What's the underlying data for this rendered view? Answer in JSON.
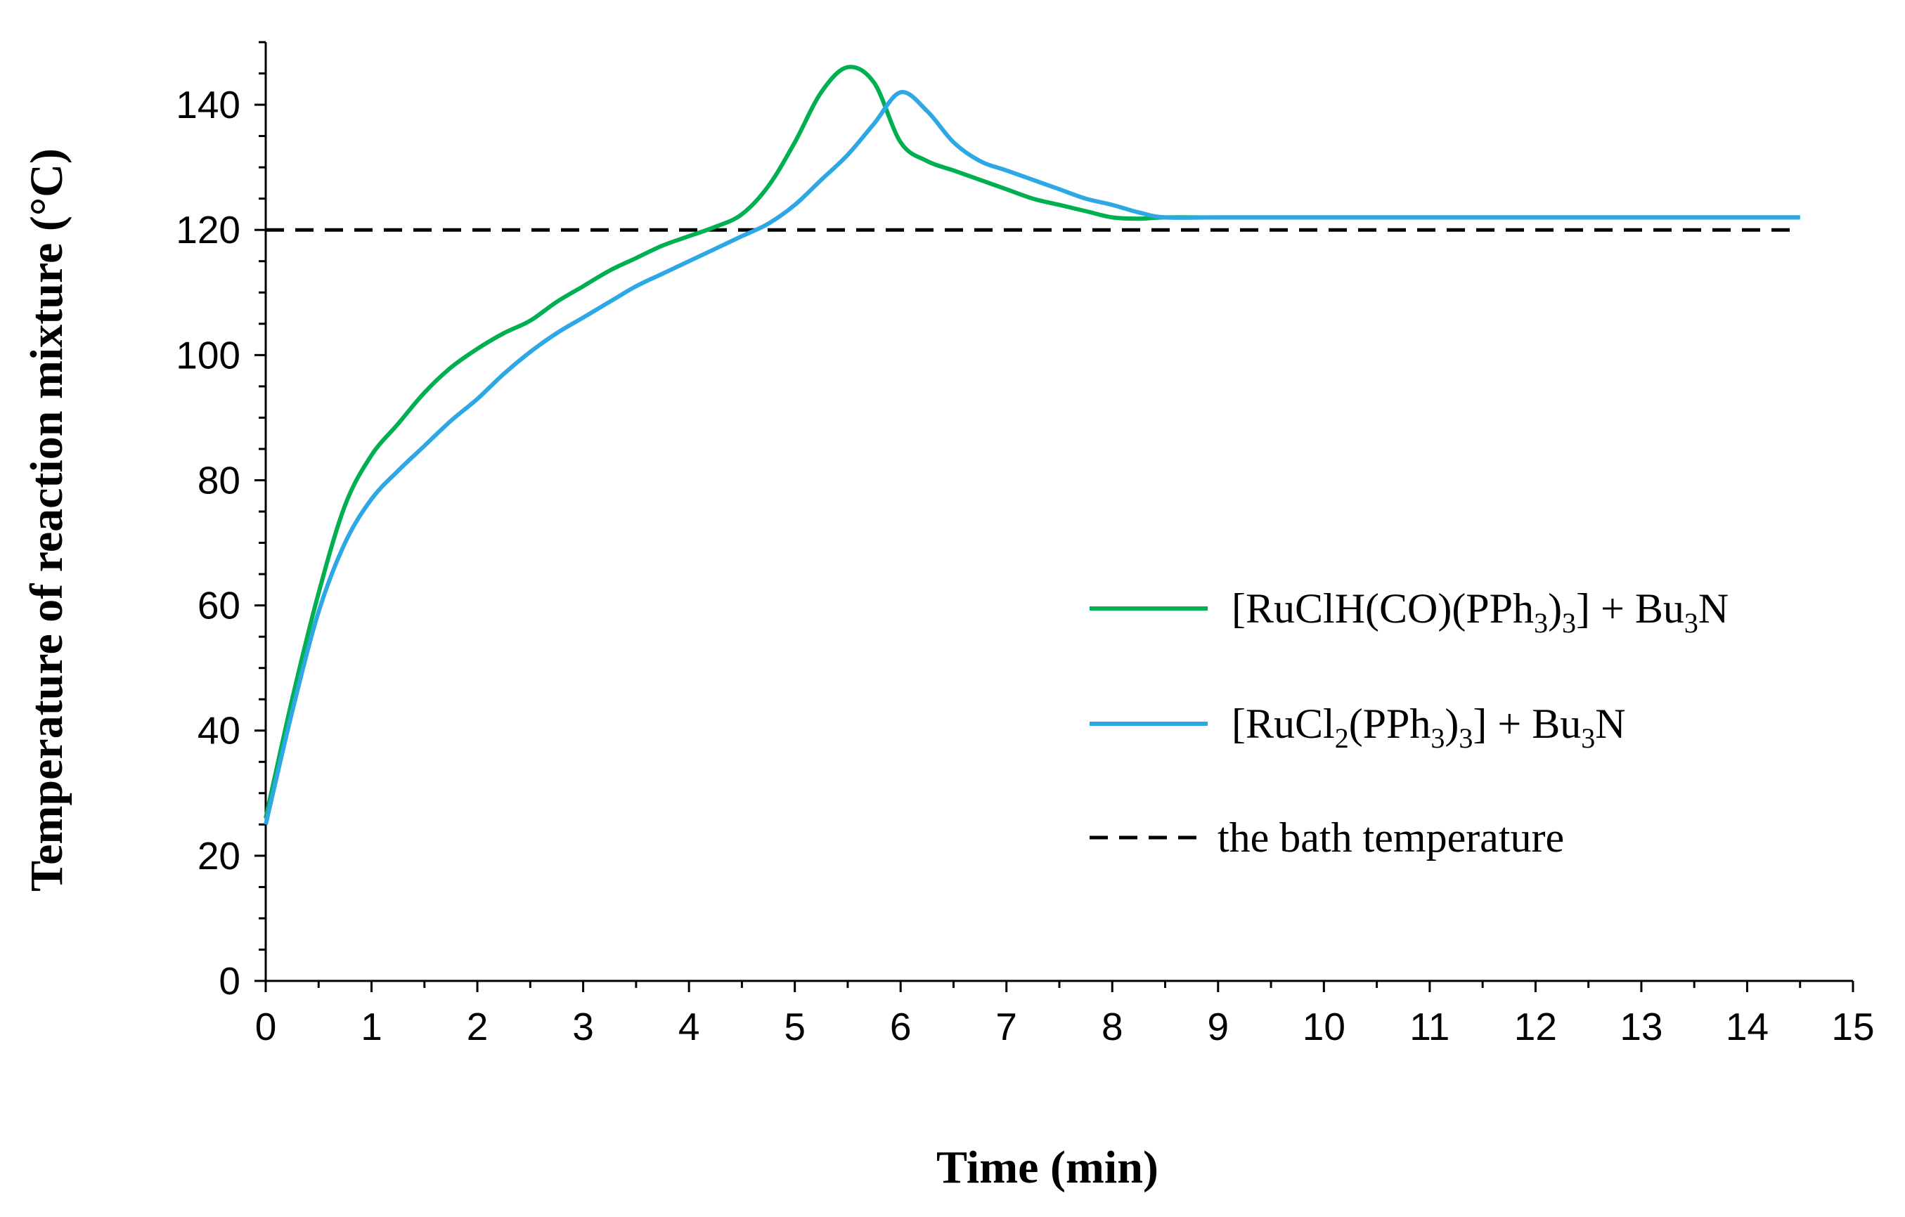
{
  "chart_data": {
    "type": "line",
    "title": "",
    "xlabel": "Time (min)",
    "ylabel": "Temperature of reaction mixture (°C)",
    "xlim": [
      0,
      15
    ],
    "ylim": [
      0,
      150
    ],
    "x_ticks": [
      0,
      1,
      2,
      3,
      4,
      5,
      6,
      7,
      8,
      9,
      10,
      11,
      12,
      13,
      14,
      15
    ],
    "y_ticks": [
      0,
      20,
      40,
      60,
      80,
      100,
      120,
      140
    ],
    "x_tick_labels": [
      "0",
      "1",
      "2",
      "3",
      "4",
      "5",
      "6",
      "7",
      "8",
      "9",
      "10",
      "11",
      "12",
      "13",
      "14",
      "15"
    ],
    "y_tick_labels": [
      "0",
      "20",
      "40",
      "60",
      "80",
      "100",
      "120",
      "140"
    ],
    "grid": false,
    "legend_position": "center-right",
    "series": [
      {
        "name": "[RuClH(CO)(PPh3)3] + Bu3N",
        "legend_parts": [
          {
            "t": "[RuClH(CO)(PPh",
            "sub": false
          },
          {
            "t": "3",
            "sub": true
          },
          {
            "t": ")",
            "sub": false
          },
          {
            "t": "3",
            "sub": true
          },
          {
            "t": "]  + Bu",
            "sub": false
          },
          {
            "t": "3",
            "sub": true
          },
          {
            "t": "N",
            "sub": false
          }
        ],
        "color": "#00b050",
        "dash": "solid",
        "x": [
          0,
          0.25,
          0.5,
          0.75,
          1.0,
          1.25,
          1.5,
          1.75,
          2.0,
          2.25,
          2.5,
          2.75,
          3.0,
          3.25,
          3.5,
          3.75,
          4.0,
          4.25,
          4.5,
          4.75,
          5.0,
          5.25,
          5.5,
          5.75,
          6.0,
          6.25,
          6.5,
          6.75,
          7.0,
          7.25,
          7.5,
          7.75,
          8.0,
          8.25,
          8.5,
          9.0,
          10.0,
          11.0,
          12.0,
          13.0,
          14.0,
          14.5
        ],
        "values": [
          26,
          45,
          62,
          76,
          84,
          89,
          94,
          98,
          101,
          103.5,
          105.5,
          108.5,
          111,
          113.5,
          115.5,
          117.5,
          119,
          120.5,
          122.5,
          127,
          134,
          142,
          146,
          143.5,
          134,
          131,
          129.5,
          128,
          126.5,
          125,
          124,
          123,
          122,
          121.8,
          122,
          122,
          122,
          122,
          122,
          122,
          122,
          122
        ]
      },
      {
        "name": "[RuCl2(PPh3)3] + Bu3N",
        "legend_parts": [
          {
            "t": "[RuCl",
            "sub": false
          },
          {
            "t": "2",
            "sub": true
          },
          {
            "t": "(PPh",
            "sub": false
          },
          {
            "t": "3",
            "sub": true
          },
          {
            "t": ")",
            "sub": false
          },
          {
            "t": "3",
            "sub": true
          },
          {
            "t": "] + Bu",
            "sub": false
          },
          {
            "t": "3",
            "sub": true
          },
          {
            "t": "N",
            "sub": false
          }
        ],
        "color": "#2ea8e4",
        "dash": "solid",
        "x": [
          0,
          0.25,
          0.5,
          0.75,
          1.0,
          1.25,
          1.5,
          1.75,
          2.0,
          2.25,
          2.5,
          2.75,
          3.0,
          3.25,
          3.5,
          3.75,
          4.0,
          4.25,
          4.5,
          4.75,
          5.0,
          5.25,
          5.5,
          5.75,
          6.0,
          6.25,
          6.5,
          6.75,
          7.0,
          7.25,
          7.5,
          7.75,
          8.0,
          8.25,
          8.5,
          9.0,
          10.0,
          11.0,
          12.0,
          13.0,
          14.0,
          14.5
        ],
        "values": [
          25,
          43,
          59,
          70,
          77,
          81.5,
          85.5,
          89.5,
          93,
          97,
          100.5,
          103.5,
          106,
          108.5,
          111,
          113,
          115,
          117,
          119,
          121,
          124,
          128,
          132,
          137,
          142,
          139,
          134,
          131,
          129.5,
          128,
          126.5,
          125,
          124,
          122.8,
          122,
          122,
          122,
          122,
          122,
          122,
          122,
          122
        ]
      },
      {
        "name": "the  bath temperature",
        "legend_parts": [
          {
            "t": "the  bath temperature",
            "sub": false
          }
        ],
        "color": "#000000",
        "dash": "dashed",
        "x": [
          0,
          14.5
        ],
        "values": [
          120,
          120
        ]
      }
    ]
  }
}
